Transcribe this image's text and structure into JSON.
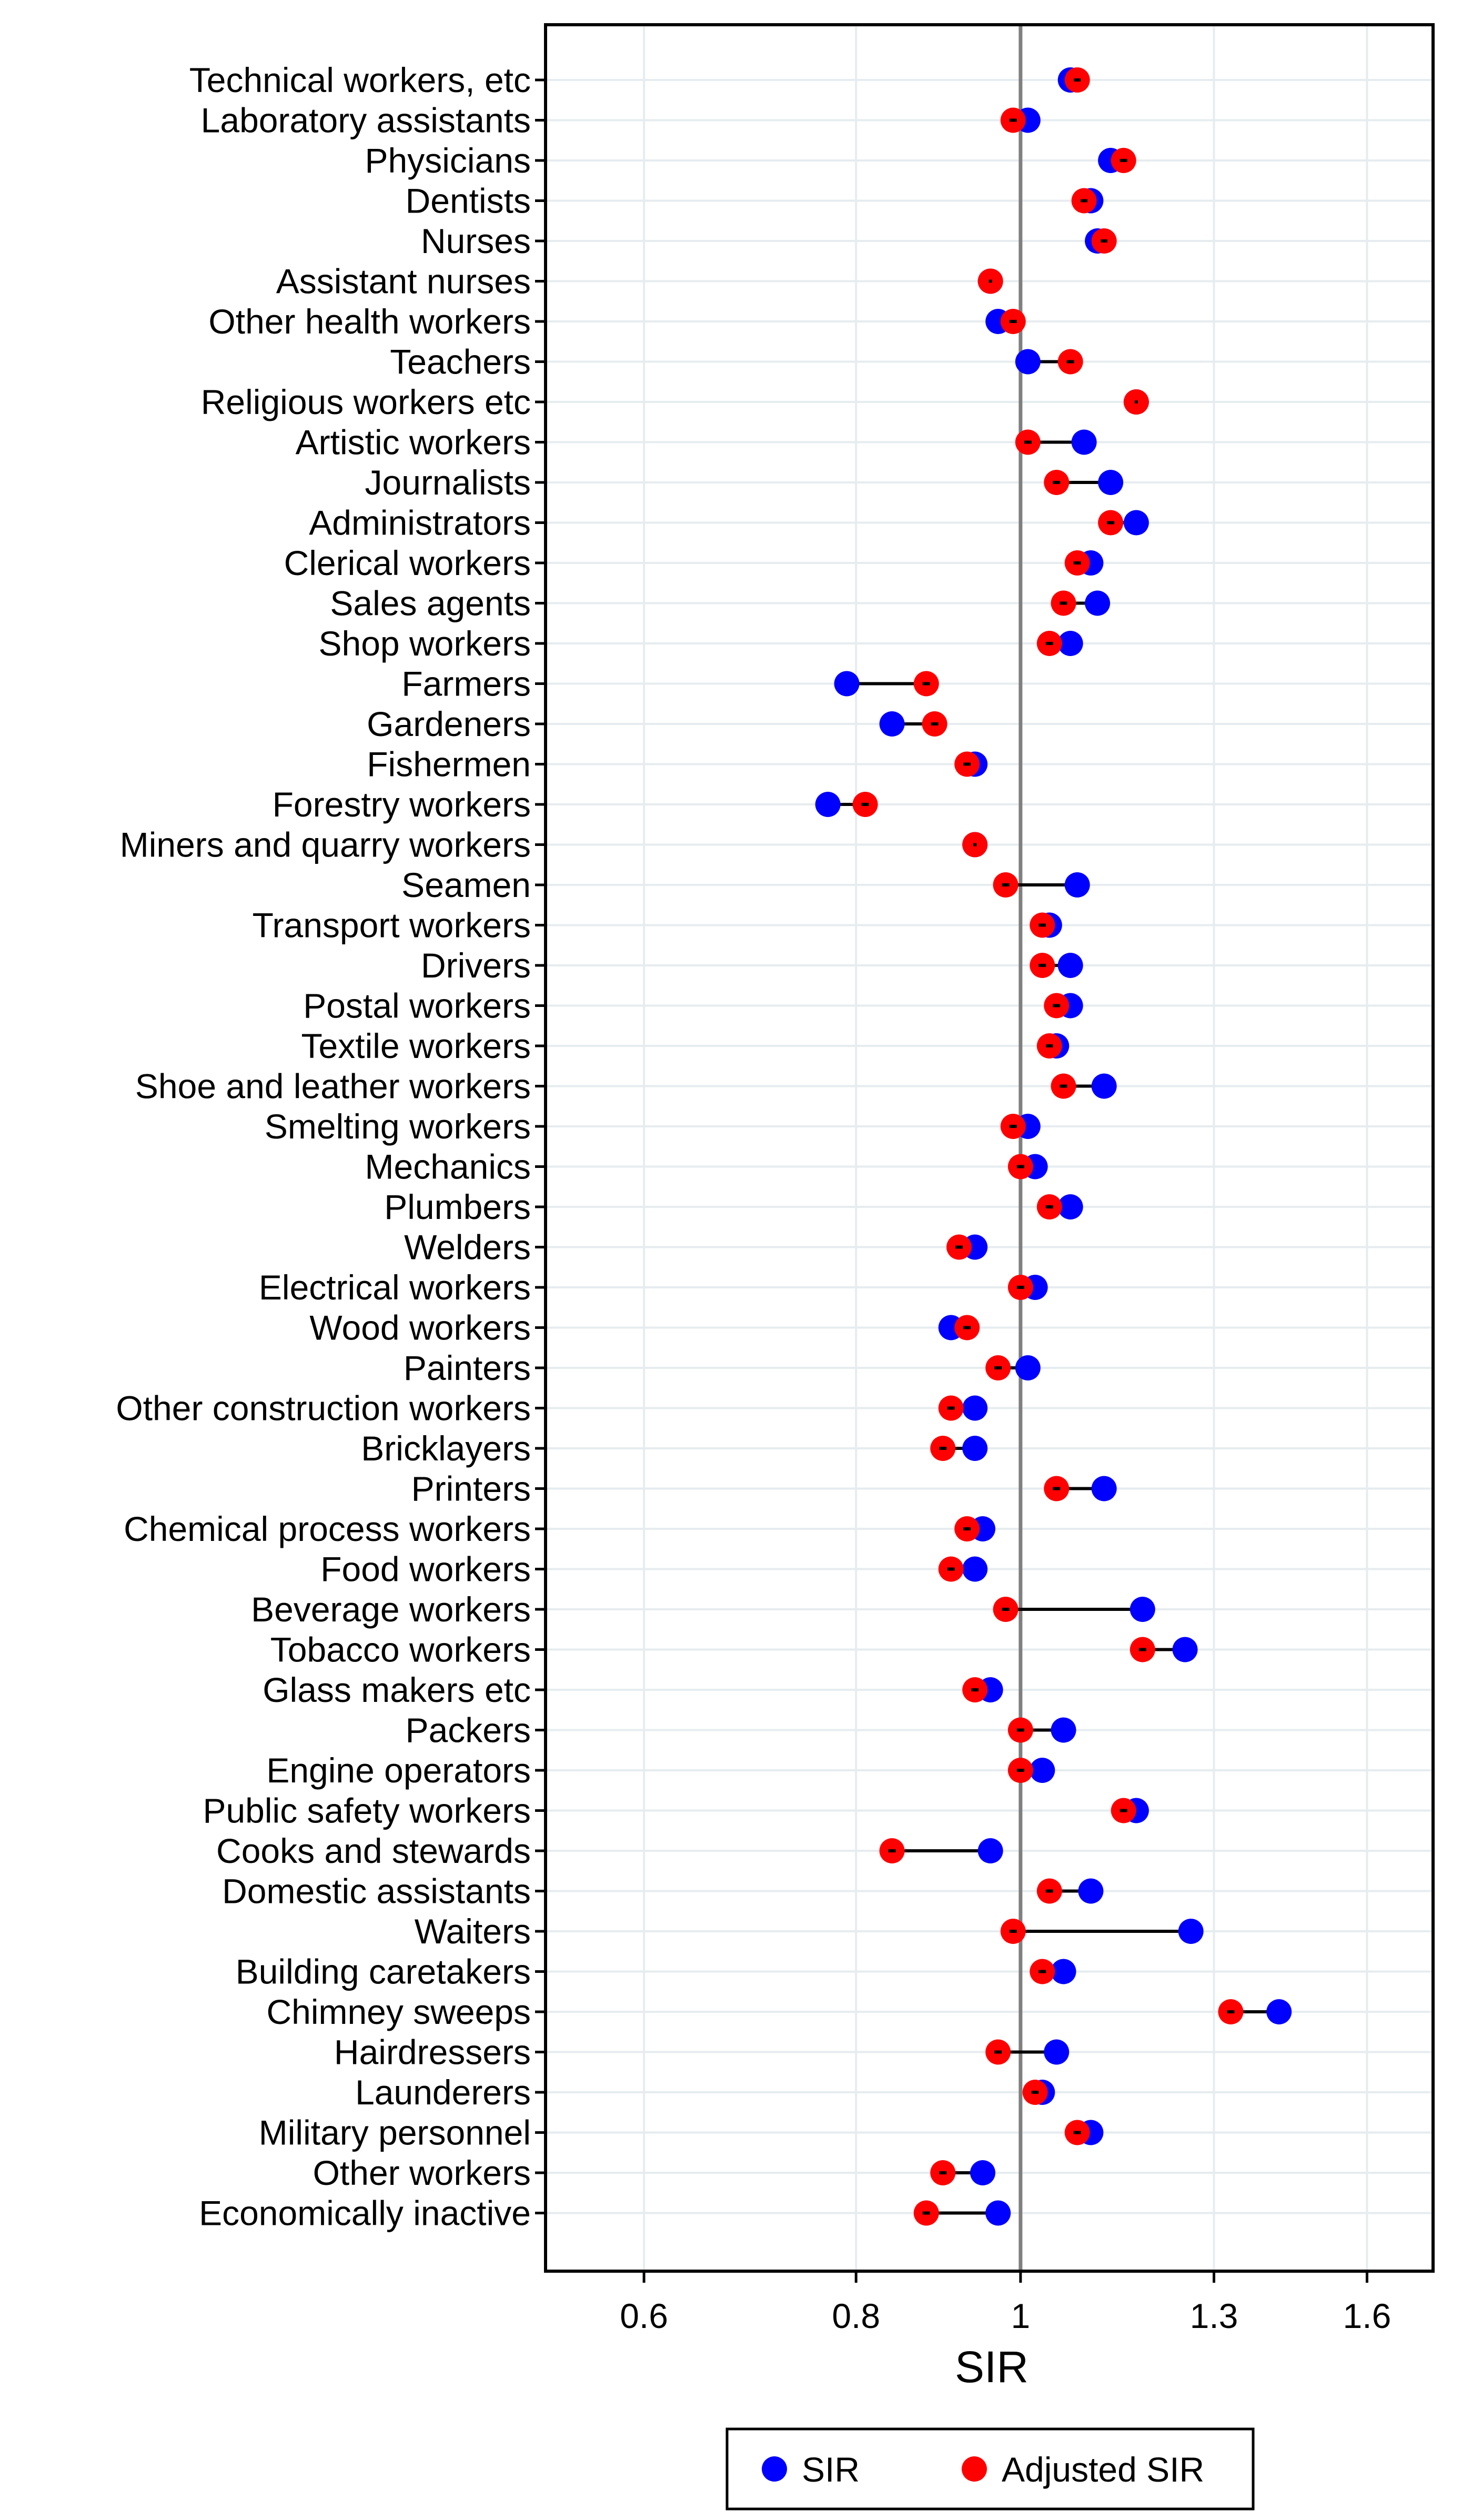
{
  "chart_data": {
    "type": "scatter",
    "subtype": "dumbbell",
    "title": "",
    "xlabel": "SIR",
    "ylabel": "",
    "xscale": "log",
    "xlim": [
      0.525,
      1.75
    ],
    "xticks": [
      {
        "value": 0.6,
        "label": "0.6"
      },
      {
        "value": 0.8,
        "label": "0.8"
      },
      {
        "value": 1.0,
        "label": "1"
      },
      {
        "value": 1.3,
        "label": "1.3"
      },
      {
        "value": 1.6,
        "label": "1.6"
      }
    ],
    "reference_line": 1.0,
    "grid": true,
    "legend": {
      "position": "bottom",
      "entries": [
        {
          "name": "SIR",
          "color": "#0000FF"
        },
        {
          "name": "Adjusted SIR",
          "color": "#FF0000"
        }
      ]
    },
    "categories": [
      "Technical workers, etc",
      "Laboratory assistants",
      "Physicians",
      "Dentists",
      "Nurses",
      "Assistant nurses",
      "Other health workers",
      "Teachers",
      "Religious workers etc",
      "Artistic workers",
      "Journalists",
      "Administrators",
      "Clerical workers",
      "Sales agents",
      "Shop workers",
      "Farmers",
      "Gardeners",
      "Fishermen",
      "Forestry workers",
      "Miners and quarry workers",
      "Seamen",
      "Transport workers",
      "Drivers",
      "Postal workers",
      "Textile workers",
      "Shoe and leather workers",
      "Smelting workers",
      "Mechanics",
      "Plumbers",
      "Welders",
      "Electrical workers",
      "Wood workers",
      "Painters",
      "Other construction workers",
      "Bricklayers",
      "Printers",
      "Chemical process workers",
      "Food workers",
      "Beverage workers",
      "Tobacco workers",
      "Glass makers etc",
      "Packers",
      "Engine operators",
      "Public safety workers",
      "Cooks and stewards",
      "Domestic assistants",
      "Waiters",
      "Building caretakers",
      "Chimney sweeps",
      "Hairdressers",
      "Launderers",
      "Military personnel",
      "Other workers",
      "Economically inactive"
    ],
    "series": [
      {
        "name": "SIR",
        "color": "#0000FF",
        "values": [
          1.07,
          1.01,
          1.13,
          1.1,
          1.11,
          0.96,
          0.97,
          1.01,
          1.17,
          1.09,
          1.13,
          1.17,
          1.1,
          1.11,
          1.07,
          0.79,
          0.84,
          0.94,
          0.77,
          0.94,
          1.08,
          1.04,
          1.07,
          1.07,
          1.05,
          1.12,
          1.01,
          1.02,
          1.07,
          0.94,
          1.02,
          0.91,
          1.01,
          0.94,
          0.94,
          1.12,
          0.95,
          0.94,
          1.18,
          1.25,
          0.96,
          1.06,
          1.03,
          1.17,
          0.96,
          1.1,
          1.26,
          1.06,
          1.42,
          1.05,
          1.03,
          1.1,
          0.95,
          0.97
        ]
      },
      {
        "name": "Adjusted SIR",
        "color": "#FF0000",
        "values": [
          1.08,
          0.99,
          1.15,
          1.09,
          1.12,
          0.96,
          0.99,
          1.07,
          1.17,
          1.01,
          1.05,
          1.13,
          1.08,
          1.06,
          1.04,
          0.88,
          0.89,
          0.93,
          0.81,
          0.94,
          0.98,
          1.03,
          1.03,
          1.05,
          1.04,
          1.06,
          0.99,
          1.0,
          1.04,
          0.92,
          1.0,
          0.93,
          0.97,
          0.91,
          0.9,
          1.05,
          0.93,
          0.91,
          0.98,
          1.18,
          0.94,
          1.0,
          1.0,
          1.15,
          0.84,
          1.04,
          0.99,
          1.03,
          1.33,
          0.97,
          1.02,
          1.08,
          0.9,
          0.88
        ]
      }
    ]
  }
}
